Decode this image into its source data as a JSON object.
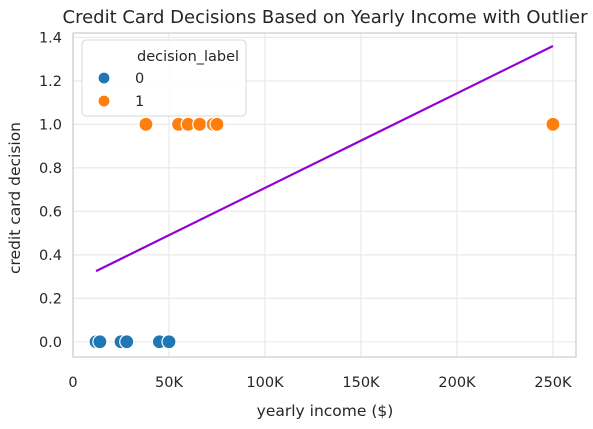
{
  "chart_data": {
    "type": "scatter",
    "title": "Credit Card Decisions Based on Yearly Income with Outlier",
    "xlabel": "yearly income ($)",
    "ylabel": "credit card decision",
    "xlim": [
      0,
      262000
    ],
    "ylim": [
      -0.07,
      1.42
    ],
    "x_ticks": [
      0,
      50000,
      100000,
      150000,
      200000,
      250000
    ],
    "x_tick_labels": [
      "0",
      "50K",
      "100K",
      "150K",
      "200K",
      "250K"
    ],
    "y_ticks": [
      0.0,
      0.2,
      0.4,
      0.6,
      0.8,
      1.0,
      1.2,
      1.4
    ],
    "y_tick_labels": [
      "0.0",
      "0.2",
      "0.4",
      "0.6",
      "0.8",
      "1.0",
      "1.2",
      "1.4"
    ],
    "grid": true,
    "legend": {
      "title": "decision_label",
      "placement": "top-left",
      "entries": [
        {
          "label": "0",
          "color": "#1f77b4"
        },
        {
          "label": "1",
          "color": "#ff7f0e"
        }
      ]
    },
    "series": [
      {
        "label": "0",
        "color": "#1f77b4",
        "x": [
          12000,
          14000,
          25000,
          28000,
          45000,
          50000
        ],
        "y": [
          0,
          0,
          0,
          0,
          0,
          0
        ]
      },
      {
        "label": "1",
        "color": "#ff7f0e",
        "x": [
          38000,
          55000,
          60000,
          66000,
          73000,
          75000,
          250000
        ],
        "y": [
          1,
          1,
          1,
          1,
          1,
          1,
          1
        ]
      }
    ],
    "fit_line": {
      "color": "#9400d3",
      "x": [
        12000,
        250000
      ],
      "y": [
        0.325,
        1.36
      ]
    }
  }
}
